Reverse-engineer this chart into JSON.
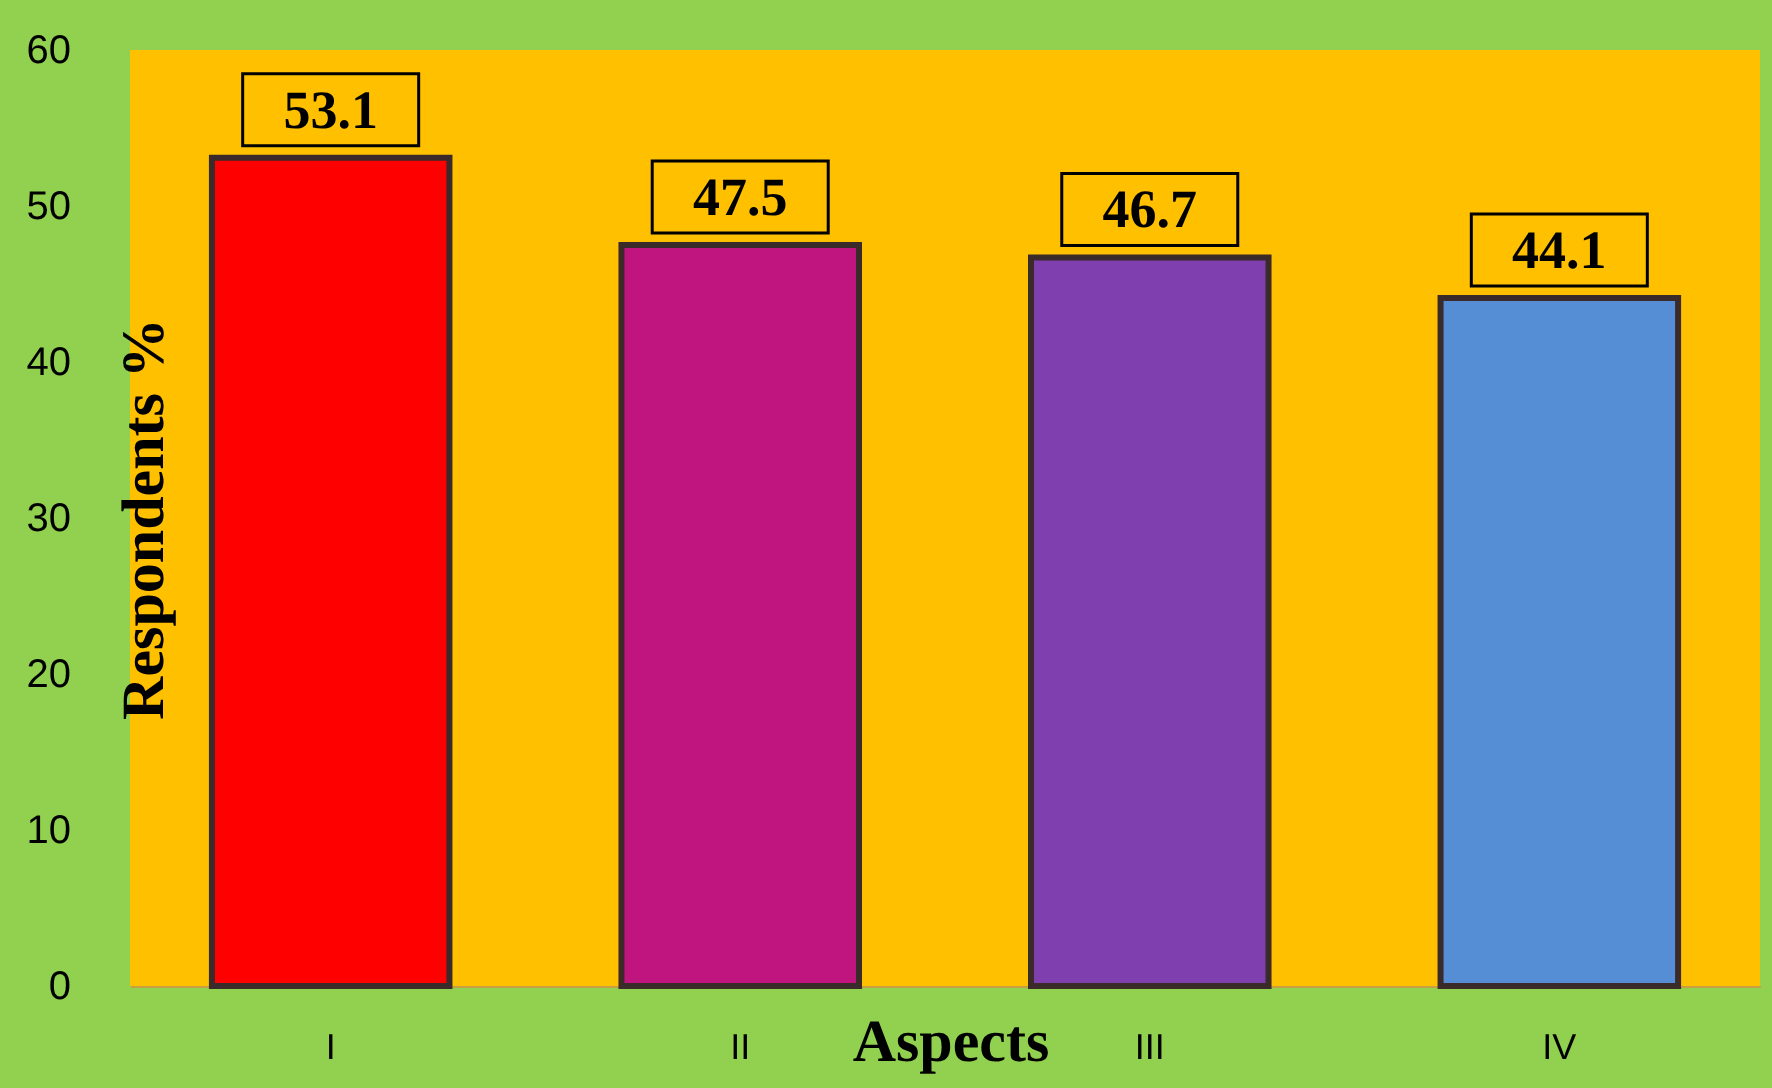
{
  "chart_data": {
    "type": "bar",
    "xlabel": "Aspects",
    "ylabel": "Respondents %",
    "categories": [
      "I",
      "II",
      "III",
      "IV"
    ],
    "values": [
      53.1,
      47.5,
      46.7,
      44.1
    ],
    "colors": [
      "#ff0000",
      "#c0157f",
      "#7f3fae",
      "#558ed5"
    ],
    "ylim": [
      0,
      60
    ],
    "yticks": [
      0,
      10,
      20,
      30,
      40,
      50,
      60
    ],
    "data_labels": true
  }
}
